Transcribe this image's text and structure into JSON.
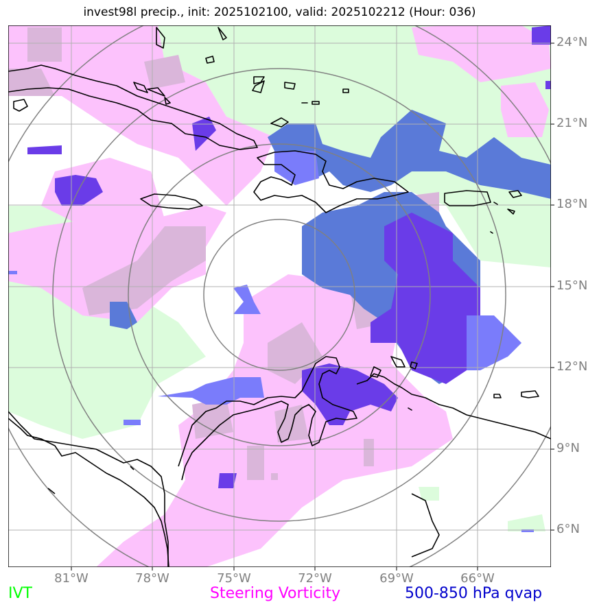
{
  "title": "invest98l precip., init: 2025102100, valid: 2025102212 (Hour: 036)",
  "legend": [
    {
      "label": "IVT",
      "color": "#00ff00"
    },
    {
      "label": "Steering Vorticity",
      "color": "#ff00ff"
    },
    {
      "label": "500-850 hPa qvap",
      "color": "#0000cc"
    }
  ],
  "axes": {
    "lat_ticks": [
      "24°N",
      "21°N",
      "18°N",
      "15°N",
      "12°N",
      "9°N",
      "6°N"
    ],
    "lon_ticks": [
      "81°W",
      "78°W",
      "75°W",
      "72°W",
      "69°W",
      "66°W"
    ]
  },
  "colors": {
    "ivt_fill": "#dcfcdc",
    "vorticity_fill": "#fcc2fc",
    "vorticity_muted": "#dab6da",
    "qvap_light": "#7a7cfb",
    "qvap_mid": "#5a7ad8",
    "qvap_dark": "#6a3ce8",
    "range_rings": "#808080",
    "gridlines": "#b0b0b0",
    "coastline": "#000000"
  }
}
